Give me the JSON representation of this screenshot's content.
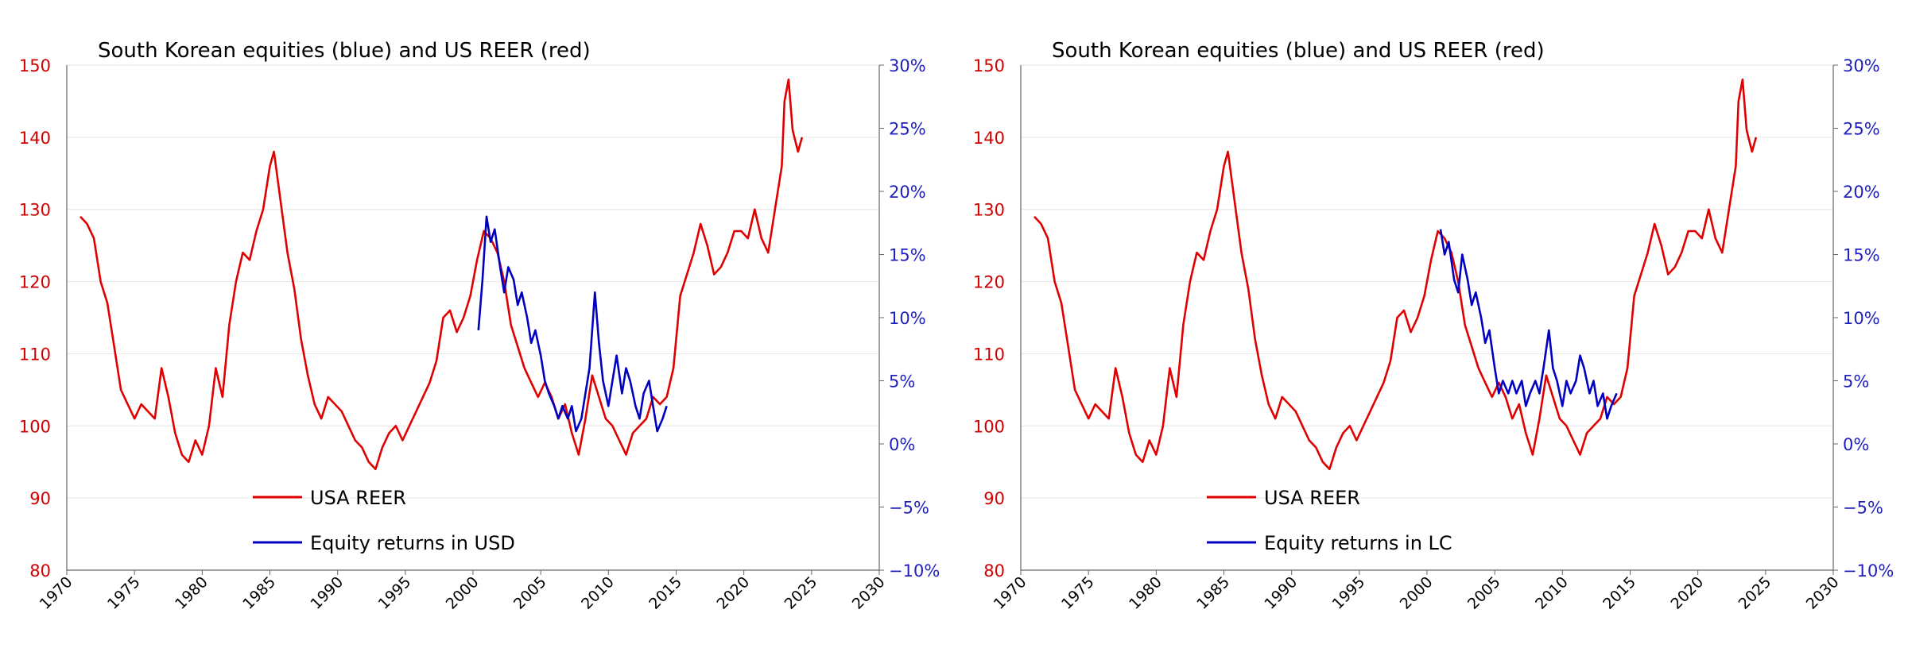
{
  "colors": {
    "reer": "#e00000",
    "equity": "#0000c0",
    "right_axis_text": "#1f1fbf",
    "left_axis_text": "#d00000",
    "grid": "#e6e6e6"
  },
  "chart_data": [
    {
      "type": "line",
      "title": "South Korean equities (blue) and US REER (red)",
      "xlabel": "",
      "xlim": [
        1970,
        2030
      ],
      "x_ticks": [
        "1970",
        "1975",
        "1980",
        "1985",
        "1990",
        "1995",
        "2000",
        "2005",
        "2010",
        "2015",
        "2020",
        "2025",
        "2030"
      ],
      "y_left": {
        "label": "",
        "lim": [
          80,
          150
        ],
        "ticks": [
          "80",
          "90",
          "100",
          "110",
          "120",
          "130",
          "140",
          "150"
        ]
      },
      "y_right": {
        "label": "",
        "lim": [
          -10,
          30
        ],
        "ticks": [
          "-10%",
          "-5%",
          "0%",
          "5%",
          "10%",
          "15%",
          "20%",
          "25%",
          "30%"
        ]
      },
      "legend": [
        "USA REER",
        "Equity returns in USD"
      ],
      "legend_position": "bottom-left",
      "series": [
        {
          "name": "USA REER",
          "axis": "left",
          "color": "#e00000",
          "x": [
            1971.0,
            1971.5,
            1972.0,
            1972.5,
            1973.0,
            1973.5,
            1974.0,
            1974.5,
            1975.0,
            1975.5,
            1976.0,
            1976.5,
            1977.0,
            1977.5,
            1978.0,
            1978.5,
            1979.0,
            1979.5,
            1980.0,
            1980.5,
            1981.0,
            1981.5,
            1982.0,
            1982.5,
            1983.0,
            1983.5,
            1984.0,
            1984.5,
            1985.0,
            1985.3,
            1985.8,
            1986.3,
            1986.8,
            1987.3,
            1987.8,
            1988.3,
            1988.8,
            1989.3,
            1989.8,
            1990.3,
            1990.8,
            1991.3,
            1991.8,
            1992.3,
            1992.8,
            1993.3,
            1993.8,
            1994.3,
            1994.8,
            1995.3,
            1995.8,
            1996.3,
            1996.8,
            1997.3,
            1997.8,
            1998.3,
            1998.8,
            1999.3,
            1999.8,
            2000.3,
            2000.8,
            2001.3,
            2001.8,
            2002.3,
            2002.8,
            2003.3,
            2003.8,
            2004.3,
            2004.8,
            2005.3,
            2005.8,
            2006.3,
            2006.8,
            2007.3,
            2007.8,
            2008.3,
            2008.8,
            2009.3,
            2009.8,
            2010.3,
            2010.8,
            2011.3,
            2011.8,
            2012.3,
            2012.8,
            2013.3,
            2013.8,
            2014.3,
            2014.8,
            2015.3,
            2015.8,
            2016.3,
            2016.8,
            2017.3,
            2017.8,
            2018.3,
            2018.8,
            2019.3,
            2019.8,
            2020.3,
            2020.8,
            2021.3,
            2021.8,
            2022.3,
            2022.8,
            2023.0,
            2023.3,
            2023.6,
            2024.0,
            2024.3
          ],
          "values": [
            129,
            128,
            126,
            120,
            117,
            111,
            105,
            103,
            101,
            103,
            102,
            101,
            108,
            104,
            99,
            96,
            95,
            98,
            96,
            100,
            108,
            104,
            114,
            120,
            124,
            123,
            127,
            130,
            136,
            138,
            131,
            124,
            119,
            112,
            107,
            103,
            101,
            104,
            103,
            102,
            100,
            98,
            97,
            95,
            94,
            97,
            99,
            100,
            98,
            100,
            102,
            104,
            106,
            109,
            115,
            116,
            113,
            115,
            118,
            123,
            127,
            126,
            124,
            120,
            114,
            111,
            108,
            106,
            104,
            106,
            104,
            101,
            103,
            99,
            96,
            101,
            107,
            104,
            101,
            100,
            98,
            96,
            99,
            100,
            101,
            104,
            103,
            104,
            108,
            118,
            121,
            124,
            128,
            125,
            121,
            122,
            124,
            127,
            127,
            126,
            130,
            126,
            124,
            130,
            136,
            145,
            148,
            141,
            138,
            140
          ]
        },
        {
          "name": "Equity returns in USD",
          "axis": "right",
          "color": "#0000c0",
          "x": [
            2000.4,
            2000.7,
            2001.0,
            2001.3,
            2001.6,
            2002.0,
            2002.3,
            2002.6,
            2003.0,
            2003.3,
            2003.6,
            2004.0,
            2004.3,
            2004.6,
            2005.0,
            2005.3,
            2005.6,
            2006.0,
            2006.3,
            2006.6,
            2007.0,
            2007.3,
            2007.6,
            2008.0,
            2008.3,
            2008.6,
            2009.0,
            2009.3,
            2009.6,
            2010.0,
            2010.3,
            2010.6,
            2011.0,
            2011.3,
            2011.6,
            2012.0,
            2012.3,
            2012.6,
            2013.0,
            2013.3,
            2013.6,
            2014.0,
            2014.3
          ],
          "values": [
            9,
            13,
            18,
            16,
            17,
            14,
            12,
            14,
            13,
            11,
            12,
            10,
            8,
            9,
            7,
            5,
            4,
            3,
            2,
            3,
            2,
            3,
            1,
            2,
            4,
            6,
            12,
            8,
            5,
            3,
            5,
            7,
            4,
            6,
            5,
            3,
            2,
            4,
            5,
            3,
            1,
            2,
            3
          ]
        }
      ]
    },
    {
      "type": "line",
      "title": "South Korean equities (blue) and US REER (red)",
      "xlabel": "",
      "xlim": [
        1970,
        2030
      ],
      "x_ticks": [
        "1970",
        "1975",
        "1980",
        "1985",
        "1990",
        "1995",
        "2000",
        "2005",
        "2010",
        "2015",
        "2020",
        "2025",
        "2030"
      ],
      "y_left": {
        "label": "",
        "lim": [
          80,
          150
        ],
        "ticks": [
          "80",
          "90",
          "100",
          "110",
          "120",
          "130",
          "140",
          "150"
        ]
      },
      "y_right": {
        "label": "",
        "lim": [
          -10,
          30
        ],
        "ticks": [
          "-10%",
          "-5%",
          "0%",
          "5%",
          "10%",
          "15%",
          "20%",
          "25%",
          "30%"
        ]
      },
      "legend": [
        "USA REER",
        "Equity returns in LC"
      ],
      "legend_position": "bottom-left",
      "series": [
        {
          "name": "USA REER",
          "axis": "left",
          "color": "#e00000",
          "x": [
            1971.0,
            1971.5,
            1972.0,
            1972.5,
            1973.0,
            1973.5,
            1974.0,
            1974.5,
            1975.0,
            1975.5,
            1976.0,
            1976.5,
            1977.0,
            1977.5,
            1978.0,
            1978.5,
            1979.0,
            1979.5,
            1980.0,
            1980.5,
            1981.0,
            1981.5,
            1982.0,
            1982.5,
            1983.0,
            1983.5,
            1984.0,
            1984.5,
            1985.0,
            1985.3,
            1985.8,
            1986.3,
            1986.8,
            1987.3,
            1987.8,
            1988.3,
            1988.8,
            1989.3,
            1989.8,
            1990.3,
            1990.8,
            1991.3,
            1991.8,
            1992.3,
            1992.8,
            1993.3,
            1993.8,
            1994.3,
            1994.8,
            1995.3,
            1995.8,
            1996.3,
            1996.8,
            1997.3,
            1997.8,
            1998.3,
            1998.8,
            1999.3,
            1999.8,
            2000.3,
            2000.8,
            2001.3,
            2001.8,
            2002.3,
            2002.8,
            2003.3,
            2003.8,
            2004.3,
            2004.8,
            2005.3,
            2005.8,
            2006.3,
            2006.8,
            2007.3,
            2007.8,
            2008.3,
            2008.8,
            2009.3,
            2009.8,
            2010.3,
            2010.8,
            2011.3,
            2011.8,
            2012.3,
            2012.8,
            2013.3,
            2013.8,
            2014.3,
            2014.8,
            2015.3,
            2015.8,
            2016.3,
            2016.8,
            2017.3,
            2017.8,
            2018.3,
            2018.8,
            2019.3,
            2019.8,
            2020.3,
            2020.8,
            2021.3,
            2021.8,
            2022.3,
            2022.8,
            2023.0,
            2023.3,
            2023.6,
            2024.0,
            2024.3
          ],
          "values": [
            129,
            128,
            126,
            120,
            117,
            111,
            105,
            103,
            101,
            103,
            102,
            101,
            108,
            104,
            99,
            96,
            95,
            98,
            96,
            100,
            108,
            104,
            114,
            120,
            124,
            123,
            127,
            130,
            136,
            138,
            131,
            124,
            119,
            112,
            107,
            103,
            101,
            104,
            103,
            102,
            100,
            98,
            97,
            95,
            94,
            97,
            99,
            100,
            98,
            100,
            102,
            104,
            106,
            109,
            115,
            116,
            113,
            115,
            118,
            123,
            127,
            126,
            124,
            120,
            114,
            111,
            108,
            106,
            104,
            106,
            104,
            101,
            103,
            99,
            96,
            101,
            107,
            104,
            101,
            100,
            98,
            96,
            99,
            100,
            101,
            104,
            103,
            104,
            108,
            118,
            121,
            124,
            128,
            125,
            121,
            122,
            124,
            127,
            127,
            126,
            130,
            126,
            124,
            130,
            136,
            145,
            148,
            141,
            138,
            140
          ]
        },
        {
          "name": "Equity returns in LC",
          "axis": "right",
          "color": "#0000c0",
          "x": [
            2001.0,
            2001.3,
            2001.6,
            2002.0,
            2002.3,
            2002.6,
            2003.0,
            2003.3,
            2003.6,
            2004.0,
            2004.3,
            2004.6,
            2005.0,
            2005.3,
            2005.6,
            2006.0,
            2006.3,
            2006.6,
            2007.0,
            2007.3,
            2007.6,
            2008.0,
            2008.3,
            2008.6,
            2009.0,
            2009.3,
            2009.6,
            2010.0,
            2010.3,
            2010.6,
            2011.0,
            2011.3,
            2011.6,
            2012.0,
            2012.3,
            2012.6,
            2013.0,
            2013.3,
            2013.6,
            2014.0
          ],
          "values": [
            17,
            15,
            16,
            13,
            12,
            15,
            13,
            11,
            12,
            10,
            8,
            9,
            6,
            4,
            5,
            4,
            5,
            4,
            5,
            3,
            4,
            5,
            4,
            6,
            9,
            6,
            5,
            3,
            5,
            4,
            5,
            7,
            6,
            4,
            5,
            3,
            4,
            2,
            3,
            4
          ]
        }
      ]
    }
  ]
}
